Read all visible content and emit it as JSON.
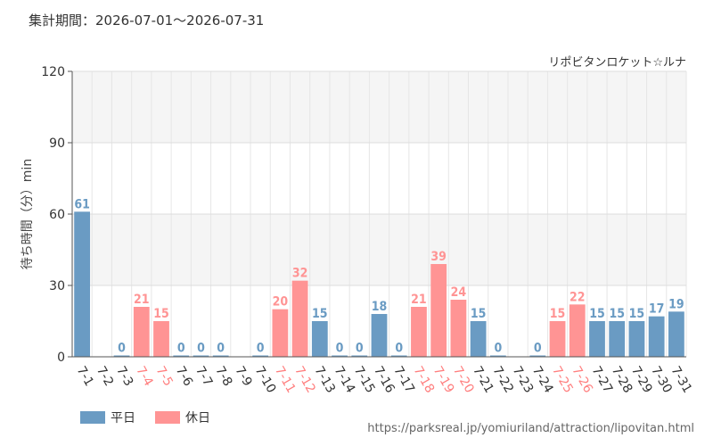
{
  "header": {
    "period": "集計期間：2026-07-01〜2026-07-31"
  },
  "footer": {
    "url": "https://parksreal.jp/yomiuriland/attraction/lipovitan.html"
  },
  "legend": {
    "weekday_label": "平日",
    "holiday_label": "休日",
    "weekday_color": "#6a9bc3",
    "holiday_color": "#ff9494"
  },
  "chart_data": {
    "type": "bar",
    "title": "リポビタンロケット☆ルナ",
    "xlabel": "",
    "ylabel": "待ち時間（分）min",
    "ylim": [
      0,
      120
    ],
    "yticks": [
      0,
      30,
      60,
      90,
      120
    ],
    "grid": true,
    "legend_position": "bottom-left",
    "categories": [
      "7-1",
      "7-2",
      "7-3",
      "7-4",
      "7-5",
      "7-6",
      "7-7",
      "7-8",
      "7-9",
      "7-10",
      "7-11",
      "7-12",
      "7-13",
      "7-14",
      "7-15",
      "7-16",
      "7-17",
      "7-18",
      "7-19",
      "7-20",
      "7-21",
      "7-22",
      "7-23",
      "7-24",
      "7-25",
      "7-26",
      "7-27",
      "7-28",
      "7-29",
      "7-30",
      "7-31"
    ],
    "values": [
      61,
      null,
      0,
      21,
      15,
      0,
      0,
      0,
      null,
      0,
      20,
      32,
      15,
      0,
      0,
      18,
      0,
      21,
      39,
      24,
      15,
      0,
      null,
      0,
      15,
      22,
      15,
      15,
      15,
      17,
      19
    ],
    "day_type": [
      "weekday",
      "weekday",
      "weekday",
      "holiday",
      "holiday",
      "weekday",
      "weekday",
      "weekday",
      "weekday",
      "weekday",
      "holiday",
      "holiday",
      "weekday",
      "weekday",
      "weekday",
      "weekday",
      "weekday",
      "holiday",
      "holiday",
      "holiday",
      "weekday",
      "weekday",
      "weekday",
      "weekday",
      "holiday",
      "holiday",
      "weekday",
      "weekday",
      "weekday",
      "weekday",
      "weekday"
    ],
    "colors": {
      "weekday": "#6a9bc3",
      "holiday": "#ff9494"
    }
  }
}
